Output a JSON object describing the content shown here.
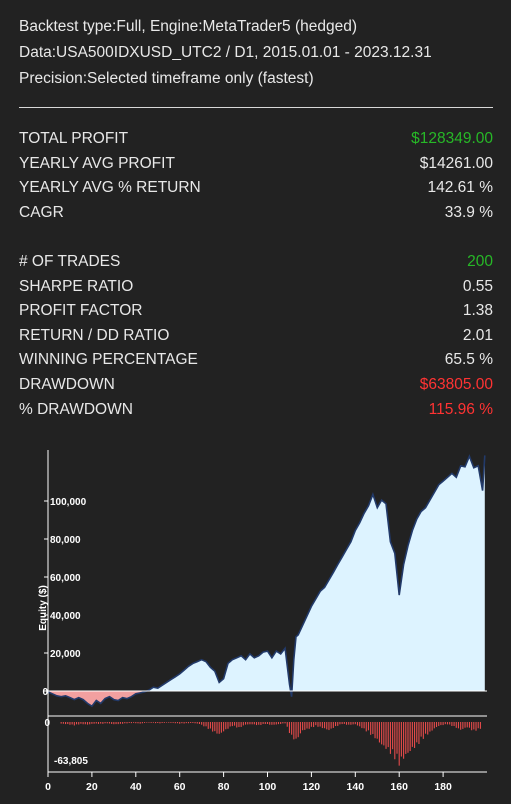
{
  "header": {
    "line1": "Backtest type:Full, Engine:MetaTrader5 (hedged)",
    "line2": "Data:USA500IDXUSD_UTC2 / D1, 2015.01.01 - 2023.12.31",
    "line3": "Precision:Selected timeframe only (fastest)"
  },
  "stats_group1": [
    {
      "label": "TOTAL PROFIT",
      "value": "$128349.00",
      "color": "#27b827"
    },
    {
      "label": "YEARLY AVG PROFIT",
      "value": "$14261.00",
      "color": "#e8e8e8"
    },
    {
      "label": "YEARLY AVG % RETURN",
      "value": "142.61 %",
      "color": "#e8e8e8"
    },
    {
      "label": "CAGR",
      "value": "33.9 %",
      "color": "#e8e8e8"
    }
  ],
  "stats_group2": [
    {
      "label": "# OF TRADES",
      "value": "200",
      "color": "#27b827"
    },
    {
      "label": "SHARPE RATIO",
      "value": "0.55",
      "color": "#e8e8e8"
    },
    {
      "label": "PROFIT FACTOR",
      "value": "1.38",
      "color": "#e8e8e8"
    },
    {
      "label": "RETURN / DD RATIO",
      "value": "2.01",
      "color": "#e8e8e8"
    },
    {
      "label": "WINNING PERCENTAGE",
      "value": "65.5 %",
      "color": "#e8e8e8"
    },
    {
      "label": "DRAWDOWN",
      "value": "$63805.00",
      "color": "#ff3333"
    },
    {
      "label": "% DRAWDOWN",
      "value": "115.96 %",
      "color": "#ff3333"
    }
  ],
  "chart_data": {
    "type": "area",
    "ylabel": "Equity ($)",
    "xlim": [
      0,
      200
    ],
    "ylim": [
      -5000,
      125000
    ],
    "yticks": [
      "0",
      "20,000",
      "40,000",
      "60,000",
      "80,000",
      "100,000"
    ],
    "xticks": [
      "0",
      "20",
      "40",
      "60",
      "80",
      "100",
      "120",
      "140",
      "160",
      "180"
    ],
    "equity": {
      "x": [
        0,
        2,
        4,
        6,
        8,
        10,
        12,
        14,
        16,
        18,
        20,
        22,
        24,
        26,
        28,
        30,
        32,
        34,
        36,
        38,
        40,
        42,
        44,
        46,
        48,
        50,
        52,
        54,
        56,
        58,
        60,
        62,
        64,
        66,
        68,
        70,
        72,
        74,
        76,
        78,
        80,
        82,
        84,
        86,
        88,
        90,
        92,
        94,
        96,
        98,
        100,
        102,
        104,
        106,
        108,
        110,
        111,
        112,
        113,
        114,
        116,
        118,
        120,
        122,
        124,
        126,
        128,
        130,
        132,
        134,
        136,
        138,
        140,
        142,
        144,
        146,
        148,
        150,
        152,
        154,
        156,
        158,
        160,
        162,
        164,
        166,
        168,
        170,
        172,
        174,
        176,
        178,
        180,
        182,
        184,
        186,
        188,
        190,
        192,
        194,
        196,
        198,
        199
      ],
      "y": [
        -500,
        -1500,
        -2500,
        -3000,
        -2500,
        -3500,
        -4500,
        -3500,
        -4500,
        -6500,
        -8000,
        -5000,
        -6500,
        -4000,
        -3000,
        -4500,
        -5000,
        -3500,
        -4000,
        -3000,
        -1500,
        -1000,
        -500,
        500,
        2000,
        1500,
        3000,
        4500,
        6000,
        7500,
        9000,
        11000,
        13000,
        14500,
        15500,
        16500,
        15500,
        12500,
        10500,
        4500,
        6500,
        14500,
        16500,
        17500,
        18500,
        16500,
        19500,
        17500,
        18500,
        20500,
        21000,
        17500,
        21000,
        19500,
        22500,
        3500,
        -3000,
        16500,
        28500,
        29500,
        34500,
        39500,
        44500,
        48500,
        52500,
        54500,
        58500,
        62500,
        66500,
        70500,
        74500,
        78500,
        84500,
        88500,
        93500,
        97500,
        103500,
        96500,
        100500,
        98500,
        78500,
        72500,
        50500,
        66500,
        76500,
        84500,
        90500,
        94500,
        96500,
        100500,
        104500,
        108500,
        110500,
        112500,
        114500,
        112500,
        118500,
        118000,
        123500,
        117500,
        118500,
        105500,
        124000
      ]
    },
    "drawdown": {
      "ylim": [
        -63805,
        0
      ],
      "ylabel_min": "-63,805",
      "ylabel_zero": "0",
      "x": [
        6,
        9,
        12,
        15,
        18,
        21,
        24,
        27,
        30,
        33,
        36,
        39,
        42,
        45,
        48,
        51,
        54,
        57,
        60,
        63,
        66,
        69,
        72,
        75,
        78,
        81,
        84,
        87,
        90,
        93,
        96,
        99,
        102,
        105,
        108,
        111,
        113,
        116,
        119,
        122,
        125,
        128,
        131,
        134,
        137,
        140,
        143,
        146,
        149,
        152,
        155,
        158,
        160,
        162,
        164,
        166,
        168,
        170,
        172,
        174,
        176,
        178,
        180,
        182,
        185,
        188,
        191,
        194,
        197
      ],
      "y": [
        -2500,
        -3500,
        -5000,
        -3000,
        -4000,
        -2500,
        -3000,
        -2000,
        -3500,
        -3000,
        -2000,
        -1500,
        -2500,
        -1000,
        -1500,
        -2000,
        -1000,
        -1500,
        -2500,
        -2000,
        -1500,
        -3000,
        -8000,
        -14000,
        -19000,
        -12000,
        -6000,
        -9000,
        -4000,
        -3500,
        -5000,
        -3000,
        -4500,
        -3500,
        -2000,
        -23000,
        -28000,
        -13000,
        -10000,
        -6000,
        -9000,
        -12500,
        -7000,
        -3000,
        -4500,
        -3500,
        -9000,
        -16000,
        -24000,
        -35000,
        -43000,
        -54000,
        -63805,
        -55000,
        -48000,
        -41000,
        -36000,
        -28000,
        -21000,
        -16000,
        -10000,
        -6000,
        -4500,
        -3500,
        -7000,
        -12000,
        -8000,
        -14000,
        -10000
      ]
    }
  },
  "colors": {
    "background": "#222222",
    "equity_fill": "#ddf3ff",
    "equity_line": "#223a6a",
    "negative_fill": "#f2a0a0",
    "drawdown_bar": "#e64b4b"
  }
}
